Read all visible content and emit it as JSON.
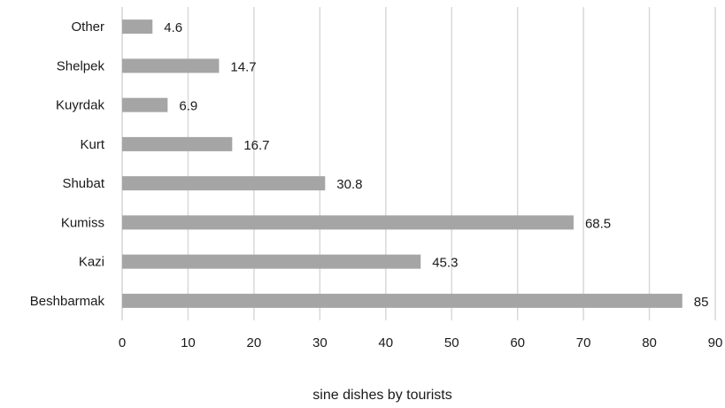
{
  "chart_data": {
    "type": "bar",
    "orientation": "horizontal",
    "categories": [
      "Beshbarmak",
      "Kazi",
      "Kumiss",
      "Shubat",
      "Kurt",
      "Kuyrdak",
      "Shelpek",
      "Other"
    ],
    "values": [
      85,
      45.3,
      68.5,
      30.8,
      16.7,
      6.9,
      14.7,
      4.6
    ],
    "data_labels": [
      "85",
      "45.3",
      "68.5",
      "30.8",
      "16.7",
      "6.9",
      "14.7",
      "4.6"
    ],
    "xlim": [
      0,
      90
    ],
    "x_ticks": [
      "0",
      "10",
      "20",
      "30",
      "40",
      "50",
      "60",
      "70",
      "80",
      "90"
    ],
    "xlabel": "sine dishes by tourists",
    "ylabel": "",
    "title": "",
    "grid": "vertical",
    "legend": "none",
    "bar_color": "#a5a5a5",
    "grid_color": "#d9d9d9"
  }
}
